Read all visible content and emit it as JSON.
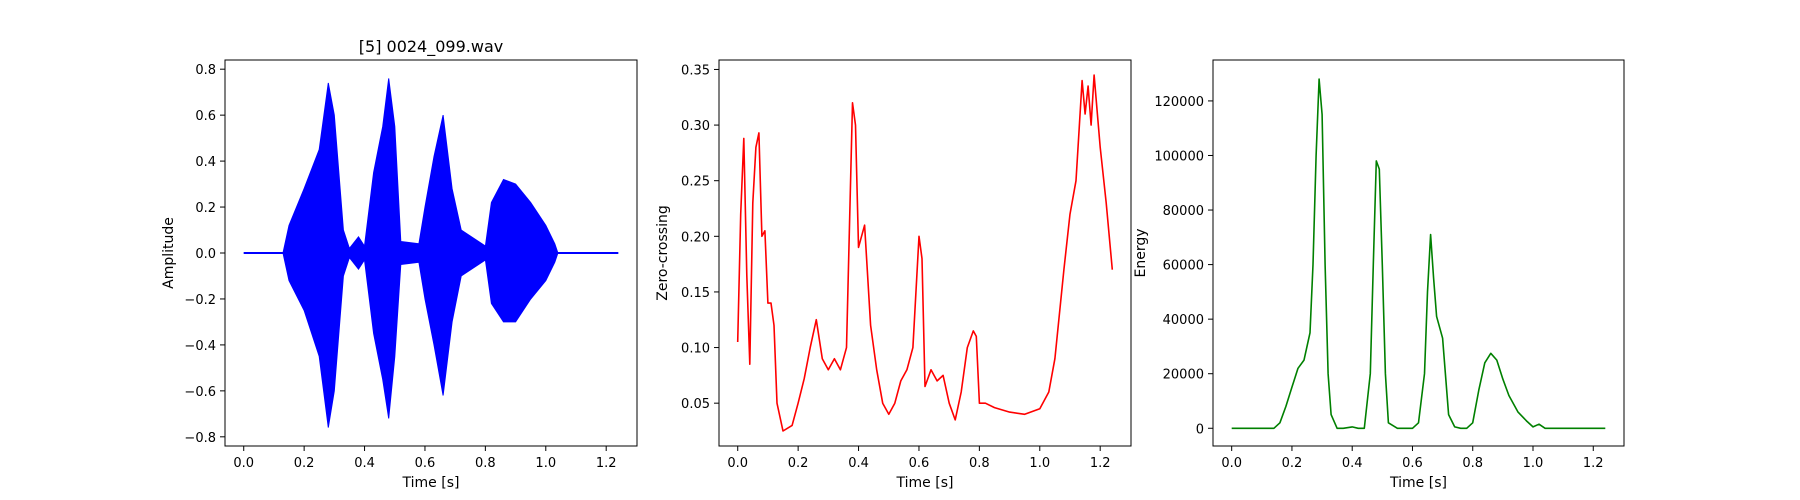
{
  "chart_data": [
    {
      "type": "line",
      "title": "[5] 0024_099.wav",
      "xlabel": "Time [s]",
      "ylabel": "Amplitude",
      "xlim": [
        -0.062,
        1.302
      ],
      "ylim": [
        -0.84,
        0.84
      ],
      "xticks": [
        0.0,
        0.2,
        0.4,
        0.6,
        0.8,
        1.0,
        1.2
      ],
      "xtick_labels": [
        "0.0",
        "0.2",
        "0.4",
        "0.6",
        "0.8",
        "1.0",
        "1.2"
      ],
      "yticks": [
        -0.8,
        -0.6,
        -0.4,
        -0.2,
        0.0,
        0.2,
        0.4,
        0.6,
        0.8
      ],
      "ytick_labels": [
        "−0.8",
        "−0.6",
        "−0.4",
        "−0.2",
        "0.0",
        "0.2",
        "0.4",
        "0.6",
        "0.8"
      ],
      "color": "#0000ff",
      "series": [
        {
          "kind": "waveform-envelope",
          "t": [
            0.0,
            0.13,
            0.15,
            0.2,
            0.25,
            0.28,
            0.3,
            0.33,
            0.35,
            0.38,
            0.4,
            0.43,
            0.46,
            0.48,
            0.5,
            0.52,
            0.58,
            0.6,
            0.63,
            0.66,
            0.69,
            0.72,
            0.8,
            0.82,
            0.86,
            0.9,
            0.95,
            1.0,
            1.03,
            1.04,
            1.24
          ],
          "upper": [
            0.0,
            0.0,
            0.12,
            0.28,
            0.45,
            0.74,
            0.6,
            0.1,
            0.02,
            0.07,
            0.03,
            0.35,
            0.55,
            0.76,
            0.55,
            0.05,
            0.04,
            0.2,
            0.42,
            0.6,
            0.28,
            0.1,
            0.03,
            0.22,
            0.32,
            0.3,
            0.22,
            0.12,
            0.04,
            0.0,
            0.0
          ],
          "lower": [
            0.0,
            0.0,
            -0.12,
            -0.25,
            -0.45,
            -0.76,
            -0.6,
            -0.1,
            -0.02,
            -0.07,
            -0.03,
            -0.35,
            -0.55,
            -0.72,
            -0.45,
            -0.05,
            -0.04,
            -0.2,
            -0.4,
            -0.62,
            -0.3,
            -0.1,
            -0.03,
            -0.22,
            -0.3,
            -0.3,
            -0.2,
            -0.12,
            -0.04,
            0.0,
            0.0
          ]
        }
      ]
    },
    {
      "type": "line",
      "title": "",
      "xlabel": "Time [s]",
      "ylabel": "Zero-crossing",
      "xlim": [
        -0.062,
        1.302
      ],
      "ylim": [
        0.0115,
        0.3585
      ],
      "xticks": [
        0.0,
        0.2,
        0.4,
        0.6,
        0.8,
        1.0,
        1.2
      ],
      "xtick_labels": [
        "0.0",
        "0.2",
        "0.4",
        "0.6",
        "0.8",
        "1.0",
        "1.2"
      ],
      "yticks": [
        0.05,
        0.1,
        0.15,
        0.2,
        0.25,
        0.3,
        0.35
      ],
      "ytick_labels": [
        "0.05",
        "0.10",
        "0.15",
        "0.20",
        "0.25",
        "0.30",
        "0.35"
      ],
      "color": "#ff0000",
      "series": [
        {
          "x": [
            0.0,
            0.01,
            0.02,
            0.03,
            0.04,
            0.05,
            0.06,
            0.07,
            0.08,
            0.09,
            0.1,
            0.11,
            0.12,
            0.13,
            0.15,
            0.18,
            0.2,
            0.22,
            0.24,
            0.26,
            0.28,
            0.3,
            0.32,
            0.34,
            0.36,
            0.38,
            0.39,
            0.4,
            0.42,
            0.44,
            0.46,
            0.48,
            0.5,
            0.52,
            0.54,
            0.56,
            0.58,
            0.6,
            0.61,
            0.62,
            0.64,
            0.66,
            0.68,
            0.7,
            0.72,
            0.74,
            0.76,
            0.78,
            0.79,
            0.8,
            0.82,
            0.85,
            0.9,
            0.95,
            1.0,
            1.03,
            1.05,
            1.08,
            1.1,
            1.12,
            1.14,
            1.15,
            1.16,
            1.17,
            1.18,
            1.2,
            1.22,
            1.24
          ],
          "y": [
            0.105,
            0.22,
            0.288,
            0.165,
            0.085,
            0.23,
            0.28,
            0.293,
            0.2,
            0.205,
            0.14,
            0.14,
            0.12,
            0.05,
            0.025,
            0.03,
            0.05,
            0.072,
            0.1,
            0.125,
            0.09,
            0.08,
            0.09,
            0.08,
            0.1,
            0.32,
            0.3,
            0.19,
            0.21,
            0.12,
            0.08,
            0.05,
            0.04,
            0.05,
            0.07,
            0.08,
            0.1,
            0.2,
            0.18,
            0.065,
            0.08,
            0.07,
            0.075,
            0.05,
            0.035,
            0.06,
            0.1,
            0.115,
            0.11,
            0.05,
            0.05,
            0.046,
            0.042,
            0.04,
            0.045,
            0.06,
            0.09,
            0.17,
            0.22,
            0.25,
            0.34,
            0.31,
            0.335,
            0.3,
            0.345,
            0.28,
            0.23,
            0.17
          ]
        }
      ]
    },
    {
      "type": "line",
      "title": "",
      "xlabel": "Time [s]",
      "ylabel": "Energy",
      "xlim": [
        -0.062,
        1.302
      ],
      "ylim": [
        -6500,
        135000
      ],
      "xticks": [
        0.0,
        0.2,
        0.4,
        0.6,
        0.8,
        1.0,
        1.2
      ],
      "xtick_labels": [
        "0.0",
        "0.2",
        "0.4",
        "0.6",
        "0.8",
        "1.0",
        "1.2"
      ],
      "yticks": [
        0,
        20000,
        40000,
        60000,
        80000,
        100000,
        120000
      ],
      "ytick_labels": [
        "0",
        "20000",
        "40000",
        "60000",
        "80000",
        "100000",
        "120000"
      ],
      "color": "#008000",
      "series": [
        {
          "x": [
            0.0,
            0.14,
            0.16,
            0.18,
            0.2,
            0.22,
            0.24,
            0.26,
            0.27,
            0.28,
            0.29,
            0.3,
            0.31,
            0.32,
            0.33,
            0.35,
            0.37,
            0.4,
            0.42,
            0.44,
            0.46,
            0.47,
            0.48,
            0.49,
            0.5,
            0.51,
            0.52,
            0.55,
            0.6,
            0.62,
            0.64,
            0.65,
            0.66,
            0.67,
            0.68,
            0.7,
            0.72,
            0.74,
            0.76,
            0.78,
            0.8,
            0.82,
            0.84,
            0.86,
            0.88,
            0.9,
            0.92,
            0.95,
            0.98,
            1.0,
            1.02,
            1.04,
            1.1,
            1.24
          ],
          "y": [
            0,
            0,
            2000,
            8000,
            15000,
            22000,
            25000,
            35000,
            60000,
            100000,
            128000,
            115000,
            60000,
            20000,
            5000,
            0,
            0,
            500,
            0,
            0,
            20000,
            60000,
            98000,
            95000,
            60000,
            20000,
            2000,
            0,
            0,
            2000,
            20000,
            50000,
            71000,
            55000,
            41000,
            33000,
            5000,
            500,
            0,
            0,
            2000,
            14000,
            24000,
            27500,
            25000,
            18000,
            12000,
            6000,
            2500,
            500,
            1500,
            0,
            0,
            0
          ]
        }
      ]
    }
  ]
}
